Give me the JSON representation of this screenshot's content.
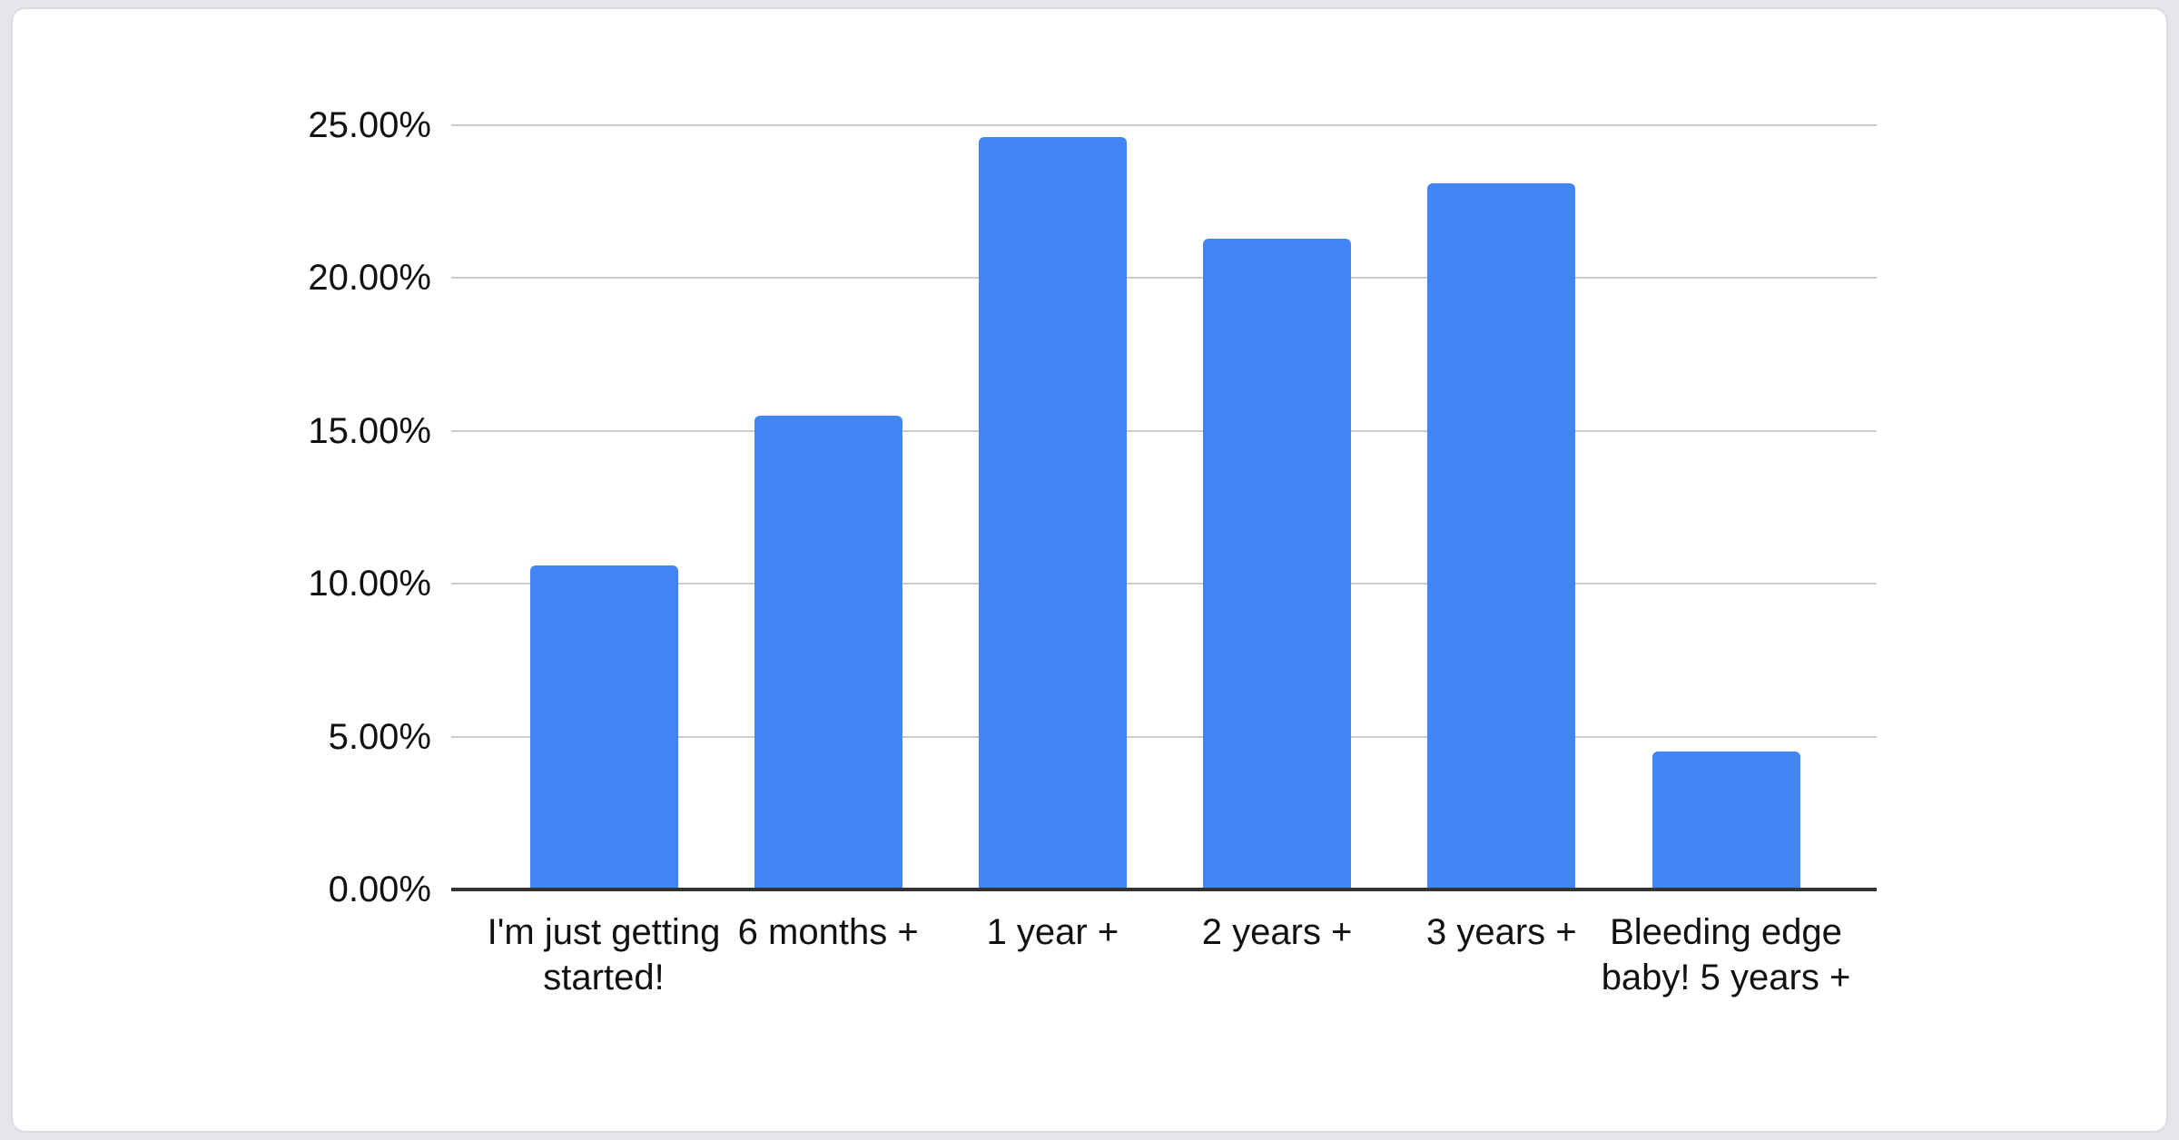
{
  "page": {
    "background_color": "#e4e6e9"
  },
  "card": {
    "background_color": "#ffffff",
    "border_color": "#d9dce1"
  },
  "chart_data": {
    "type": "bar",
    "title": "",
    "xlabel": "",
    "ylabel": "",
    "categories": [
      "I'm just getting started!",
      "6 months +",
      "1 year +",
      "2 years +",
      "3 years +",
      "Bleeding edge baby! 5 years +"
    ],
    "values": [
      10.6,
      15.5,
      24.6,
      21.3,
      23.1,
      4.5
    ],
    "value_unit": "%",
    "ylim": [
      0,
      25
    ],
    "y_ticks": [
      {
        "value": 0,
        "label": "0.00%"
      },
      {
        "value": 5,
        "label": "5.00%"
      },
      {
        "value": 10,
        "label": "10.00%"
      },
      {
        "value": 15,
        "label": "15.00%"
      },
      {
        "value": 20,
        "label": "20.00%"
      },
      {
        "value": 25,
        "label": "25.00%"
      }
    ],
    "grid": true,
    "legend_position": "none",
    "colors": {
      "bar": "#4285f4",
      "gridline": "#cccccc",
      "axis_line": "#333333",
      "label_text": "#111111"
    }
  }
}
